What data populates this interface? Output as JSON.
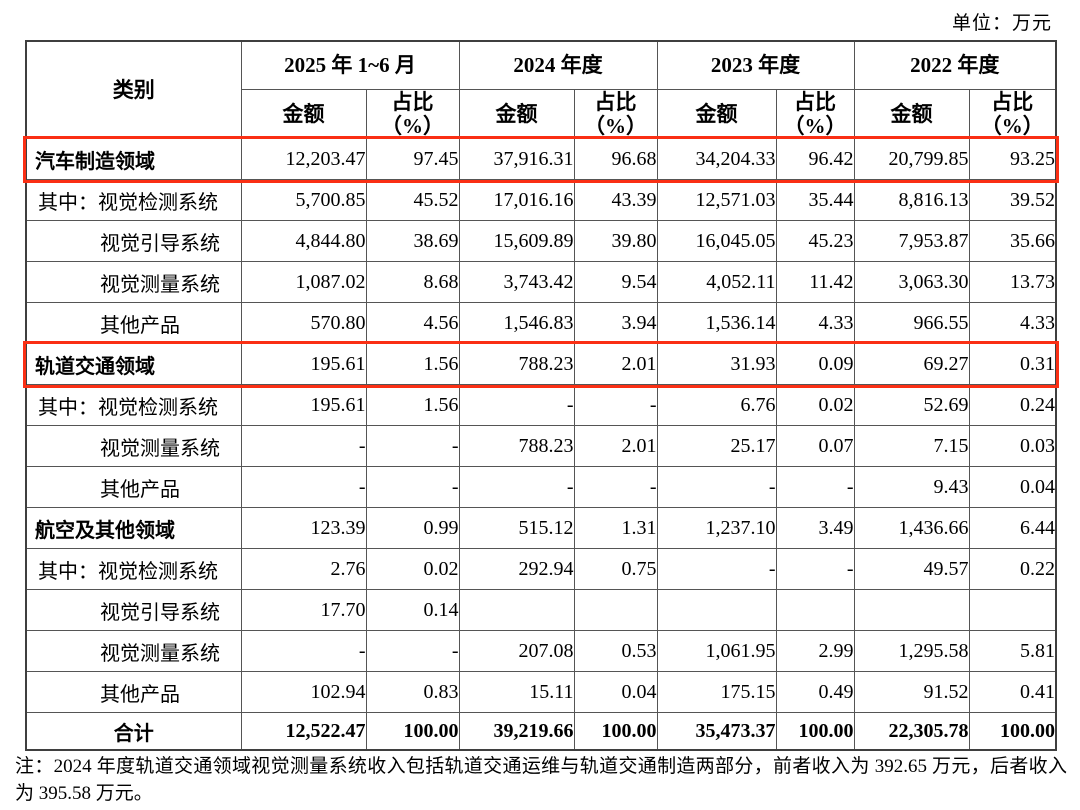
{
  "unit_label": "单位：万元",
  "highlight_color": "#fa2f14",
  "table": {
    "header": {
      "category": "类别",
      "periods": [
        "2025 年 1~6 月",
        "2024 年度",
        "2023 年度",
        "2022 年度"
      ],
      "amount": "金额",
      "ratio": "占比\n（%）"
    },
    "rows": [
      {
        "label": "汽车制造领域",
        "style": "section",
        "highlight": true,
        "values": [
          "12,203.47",
          "97.45",
          "37,916.31",
          "96.68",
          "34,204.33",
          "96.42",
          "20,799.85",
          "93.25"
        ]
      },
      {
        "label": "其中：视觉检测系统",
        "style": "qizhong",
        "highlight": false,
        "values": [
          "5,700.85",
          "45.52",
          "17,016.16",
          "43.39",
          "12,571.03",
          "35.44",
          "8,816.13",
          "39.52"
        ]
      },
      {
        "label": "视觉引导系统",
        "style": "sub",
        "highlight": false,
        "values": [
          "4,844.80",
          "38.69",
          "15,609.89",
          "39.80",
          "16,045.05",
          "45.23",
          "7,953.87",
          "35.66"
        ]
      },
      {
        "label": "视觉测量系统",
        "style": "sub",
        "highlight": false,
        "values": [
          "1,087.02",
          "8.68",
          "3,743.42",
          "9.54",
          "4,052.11",
          "11.42",
          "3,063.30",
          "13.73"
        ]
      },
      {
        "label": "其他产品",
        "style": "sub",
        "highlight": false,
        "values": [
          "570.80",
          "4.56",
          "1,546.83",
          "3.94",
          "1,536.14",
          "4.33",
          "966.55",
          "4.33"
        ]
      },
      {
        "label": "轨道交通领域",
        "style": "section",
        "highlight": true,
        "values": [
          "195.61",
          "1.56",
          "788.23",
          "2.01",
          "31.93",
          "0.09",
          "69.27",
          "0.31"
        ]
      },
      {
        "label": "其中：视觉检测系统",
        "style": "qizhong",
        "highlight": false,
        "values": [
          "195.61",
          "1.56",
          "-",
          "-",
          "6.76",
          "0.02",
          "52.69",
          "0.24"
        ]
      },
      {
        "label": "视觉测量系统",
        "style": "sub",
        "highlight": false,
        "values": [
          "-",
          "-",
          "788.23",
          "2.01",
          "25.17",
          "0.07",
          "7.15",
          "0.03"
        ]
      },
      {
        "label": "其他产品",
        "style": "sub",
        "highlight": false,
        "values": [
          "-",
          "-",
          "-",
          "-",
          "-",
          "-",
          "9.43",
          "0.04"
        ]
      },
      {
        "label": "航空及其他领域",
        "style": "section",
        "highlight": false,
        "values": [
          "123.39",
          "0.99",
          "515.12",
          "1.31",
          "1,237.10",
          "3.49",
          "1,436.66",
          "6.44"
        ]
      },
      {
        "label": "其中：视觉检测系统",
        "style": "qizhong",
        "highlight": false,
        "values": [
          "2.76",
          "0.02",
          "292.94",
          "0.75",
          "-",
          "-",
          "49.57",
          "0.22"
        ]
      },
      {
        "label": "视觉引导系统",
        "style": "sub",
        "highlight": false,
        "values": [
          "17.70",
          "0.14",
          "",
          "",
          "",
          "",
          "",
          ""
        ]
      },
      {
        "label": "视觉测量系统",
        "style": "sub",
        "highlight": false,
        "values": [
          "-",
          "-",
          "207.08",
          "0.53",
          "1,061.95",
          "2.99",
          "1,295.58",
          "5.81"
        ]
      },
      {
        "label": "其他产品",
        "style": "sub",
        "highlight": false,
        "values": [
          "102.94",
          "0.83",
          "15.11",
          "0.04",
          "175.15",
          "0.49",
          "91.52",
          "0.41"
        ]
      },
      {
        "label": "合计",
        "style": "total",
        "highlight": false,
        "values": [
          "12,522.47",
          "100.00",
          "39,219.66",
          "100.00",
          "35,473.37",
          "100.00",
          "22,305.78",
          "100.00"
        ]
      }
    ]
  },
  "note": {
    "text": "注：2024 年度轨道交通领域视觉测量系统收入包括轨道交通运维与轨道交通制造两部分，前者收入为 392.65 万元，后者收入为 395.58 万元。"
  }
}
